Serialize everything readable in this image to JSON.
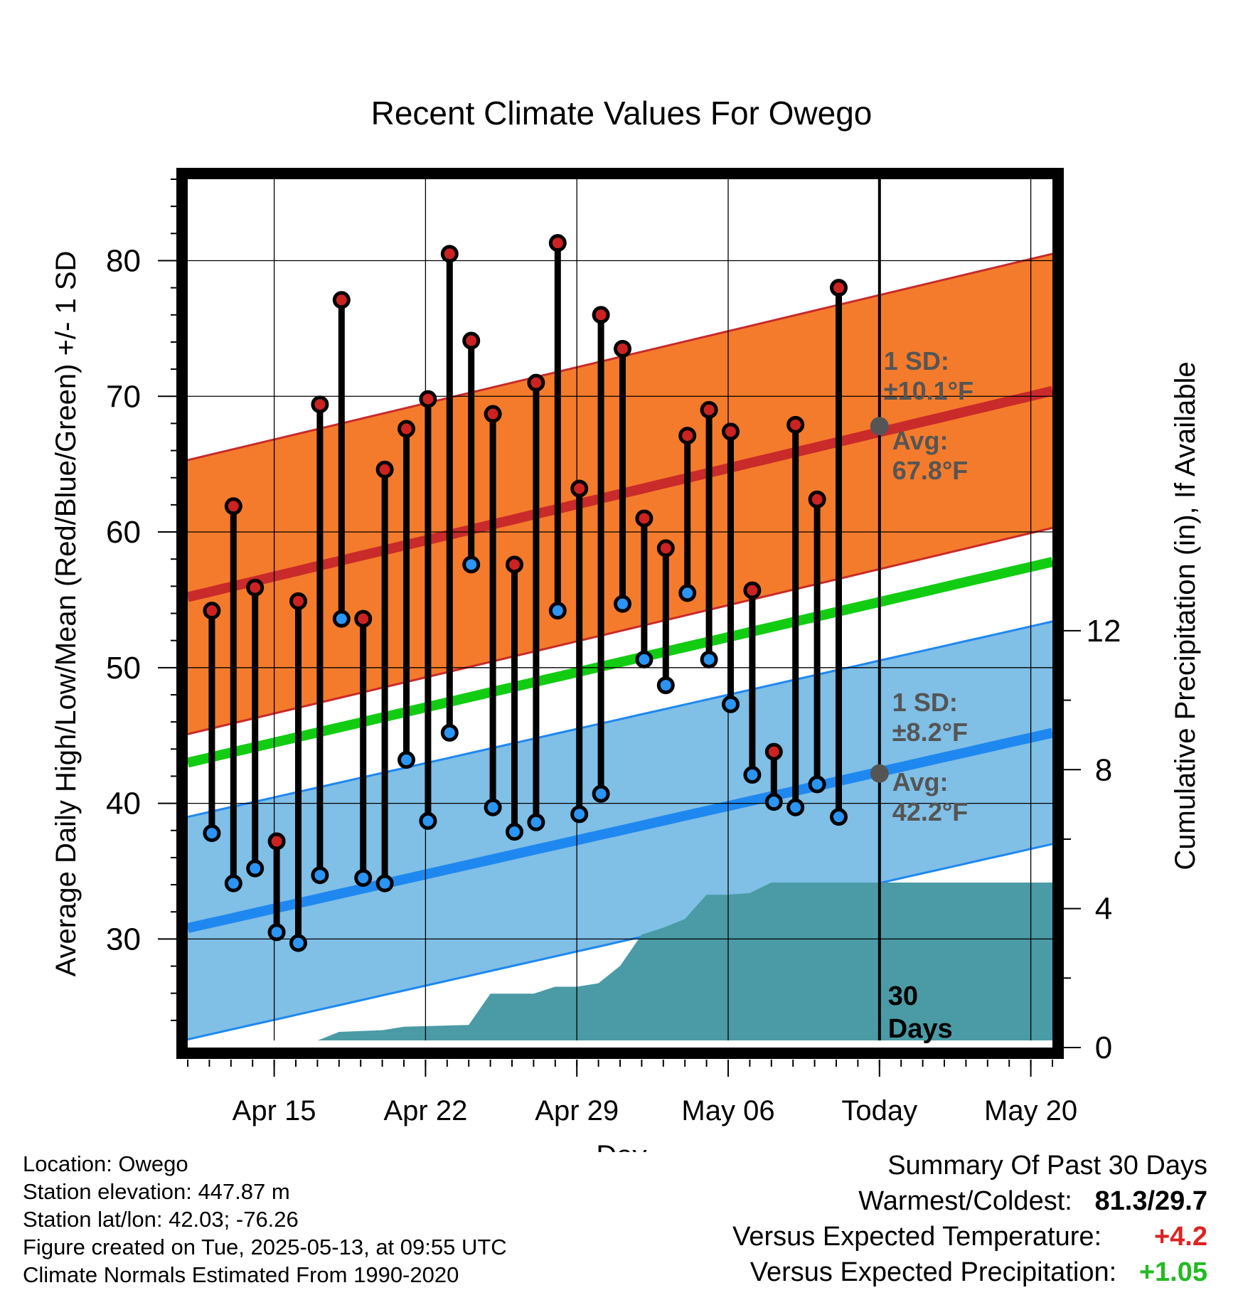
{
  "title": "Recent Climate Values For Owego",
  "chart_data": {
    "type": "line",
    "title": "Recent Climate Values For Owego",
    "xlabel": "Day",
    "ylabel": "Average Daily High/Low/Mean (Red/Blue/Green) +/- 1 SD",
    "y2label": "Cumulative Precipitation (in), If Available",
    "ylim": [
      22,
      86
    ],
    "y2lim": [
      0,
      25
    ],
    "yticks": [
      30,
      40,
      50,
      60,
      70,
      80
    ],
    "y2ticks": [
      0,
      4,
      8,
      12
    ],
    "xlim": [
      "2025-04-11",
      "2025-05-21"
    ],
    "xticks": [
      {
        "date": "2025-04-15",
        "label": "Apr 15"
      },
      {
        "date": "2025-04-22",
        "label": "Apr 22"
      },
      {
        "date": "2025-04-29",
        "label": "Apr 29"
      },
      {
        "date": "2025-05-06",
        "label": "May 06"
      },
      {
        "date": "2025-05-13",
        "label": "Today"
      },
      {
        "date": "2025-05-20",
        "label": "May 20"
      }
    ],
    "grid": true,
    "today": "2025-05-13",
    "today_label": "30\nDays",
    "normals": {
      "high_mean": {
        "start": 55.2,
        "end": 70.4
      },
      "high_sd": 10.1,
      "low_mean": {
        "start": 30.8,
        "end": 45.2
      },
      "low_sd": 8.2,
      "avg_mean": {
        "start": 43.0,
        "end": 57.8
      },
      "high_annotation": {
        "sd_label": "1 SD:",
        "sd_value": "±10.1°F",
        "avg_label": "Avg:",
        "avg_value": "67.8°F",
        "value": 67.8
      },
      "low_annotation": {
        "sd_label": "1 SD:",
        "sd_value": "±8.2°F",
        "avg_label": "Avg:",
        "avg_value": "42.2°F",
        "value": 42.2
      }
    },
    "observations": [
      {
        "date": "2025-04-12",
        "high": 54.2,
        "low": 37.8
      },
      {
        "date": "2025-04-13",
        "high": 61.9,
        "low": 34.1
      },
      {
        "date": "2025-04-14",
        "high": 55.9,
        "low": 35.2
      },
      {
        "date": "2025-04-15",
        "high": 37.2,
        "low": 30.5
      },
      {
        "date": "2025-04-16",
        "high": 54.9,
        "low": 29.7
      },
      {
        "date": "2025-04-17",
        "high": 69.4,
        "low": 34.7
      },
      {
        "date": "2025-04-18",
        "high": 77.1,
        "low": 53.6
      },
      {
        "date": "2025-04-19",
        "high": 53.6,
        "low": 34.5
      },
      {
        "date": "2025-04-20",
        "high": 64.6,
        "low": 34.1
      },
      {
        "date": "2025-04-21",
        "high": 67.6,
        "low": 43.2
      },
      {
        "date": "2025-04-22",
        "high": 69.8,
        "low": 38.7
      },
      {
        "date": "2025-04-23",
        "high": 80.5,
        "low": 45.2
      },
      {
        "date": "2025-04-24",
        "high": 74.1,
        "low": 57.6
      },
      {
        "date": "2025-04-25",
        "high": 68.7,
        "low": 39.7
      },
      {
        "date": "2025-04-26",
        "high": 57.6,
        "low": 37.9
      },
      {
        "date": "2025-04-27",
        "high": 71.0,
        "low": 38.6
      },
      {
        "date": "2025-04-28",
        "high": 81.3,
        "low": 54.2
      },
      {
        "date": "2025-04-29",
        "high": 63.2,
        "low": 39.2
      },
      {
        "date": "2025-04-30",
        "high": 76.0,
        "low": 40.7
      },
      {
        "date": "2025-05-01",
        "high": 73.5,
        "low": 54.7
      },
      {
        "date": "2025-05-02",
        "high": 61.0,
        "low": 50.6
      },
      {
        "date": "2025-05-03",
        "high": 58.8,
        "low": 48.7
      },
      {
        "date": "2025-05-04",
        "high": 67.1,
        "low": 55.5
      },
      {
        "date": "2025-05-05",
        "high": 69.0,
        "low": 50.6
      },
      {
        "date": "2025-05-06",
        "high": 67.4,
        "low": 47.3
      },
      {
        "date": "2025-05-07",
        "high": 55.7,
        "low": 42.1
      },
      {
        "date": "2025-05-08",
        "high": 43.8,
        "low": 40.1
      },
      {
        "date": "2025-05-09",
        "high": 67.9,
        "low": 39.7
      },
      {
        "date": "2025-05-10",
        "high": 62.4,
        "low": 41.4
      },
      {
        "date": "2025-05-11",
        "high": 78.0,
        "low": 39.0
      }
    ],
    "cumulative_precipitation": [
      {
        "date": "2025-04-13",
        "value": 0.0
      },
      {
        "date": "2025-04-14",
        "value": 0.15
      },
      {
        "date": "2025-04-17",
        "value": 0.2
      },
      {
        "date": "2025-04-18",
        "value": 0.45
      },
      {
        "date": "2025-04-20",
        "value": 0.5
      },
      {
        "date": "2025-04-21",
        "value": 0.6
      },
      {
        "date": "2025-04-24",
        "value": 0.65
      },
      {
        "date": "2025-04-25",
        "value": 1.55
      },
      {
        "date": "2025-04-27",
        "value": 1.55
      },
      {
        "date": "2025-04-28",
        "value": 1.75
      },
      {
        "date": "2025-04-29",
        "value": 1.75
      },
      {
        "date": "2025-04-30",
        "value": 1.85
      },
      {
        "date": "2025-05-01",
        "value": 2.35
      },
      {
        "date": "2025-05-02",
        "value": 3.25
      },
      {
        "date": "2025-05-03",
        "value": 3.45
      },
      {
        "date": "2025-05-04",
        "value": 3.7
      },
      {
        "date": "2025-05-05",
        "value": 4.4
      },
      {
        "date": "2025-05-06",
        "value": 4.4
      },
      {
        "date": "2025-05-07",
        "value": 4.45
      },
      {
        "date": "2025-05-08",
        "value": 4.75
      },
      {
        "date": "2025-05-21",
        "value": 4.75
      }
    ]
  },
  "footer": {
    "location": "Location: Owego",
    "elevation": "Station elevation: 447.87 m",
    "latlon": "Station lat/lon: 42.03; -76.26",
    "created": "Figure created on Tue, 2025-05-13, at 09:55 UTC",
    "normals": "Climate Normals Estimated From 1990-2020"
  },
  "summary": {
    "title": "Summary Of Past 30 Days",
    "warm_cold_label": "Warmest/Coldest:",
    "warm_cold_value": "81.3/29.7",
    "temp_label": "Versus Expected Temperature:",
    "temp_value": "+4.2",
    "precip_label": "Versus Expected Precipitation:",
    "precip_value": "+1.05"
  },
  "colors": {
    "high_band": "#f47b2b",
    "high_line": "#c92a2a",
    "low_band": "#80bfe6",
    "low_line": "#1e88f0",
    "avg_line": "#12cc12",
    "precip": "#4a9ba5",
    "high_marker": "#cc2222",
    "low_marker": "#2a95f5",
    "annotation": "#555555",
    "temp_anomaly": "#dd2222",
    "precip_anomaly": "#22bb22"
  }
}
